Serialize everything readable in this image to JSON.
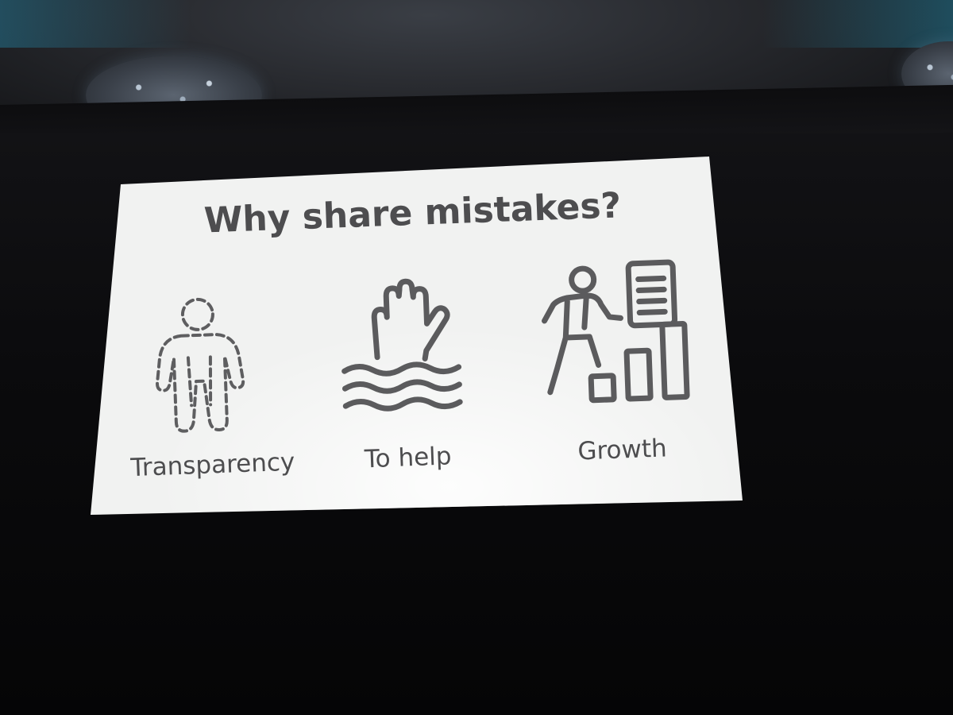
{
  "slide": {
    "title": "Why share mistakes?",
    "items": [
      {
        "label": "Transparency",
        "icon": "dashed-person-icon"
      },
      {
        "label": "To help",
        "icon": "drowning-hand-icon"
      },
      {
        "label": "Growth",
        "icon": "climbing-person-chart-icon"
      }
    ]
  },
  "colors": {
    "slide_background": "#f1f2f1",
    "slide_ink": "#5b5b5d",
    "room": "#070708"
  }
}
